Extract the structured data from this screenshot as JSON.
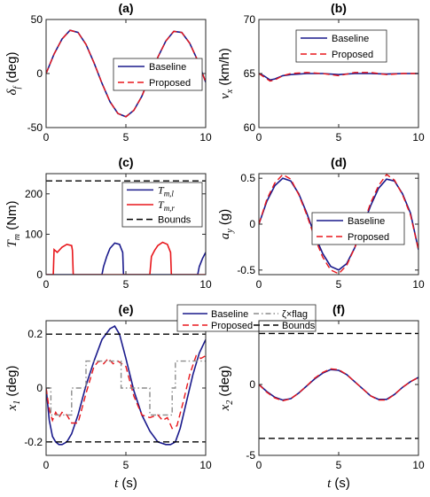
{
  "colors": {
    "baseline": "#1a1a8c",
    "proposed": "#e8161b",
    "bounds": "#000000",
    "flag": "#8c8c8c"
  },
  "chart_data": [
    {
      "id": "a",
      "type": "line",
      "title": "(a)",
      "ylabel": "δ_f (deg)",
      "xlabel": "",
      "xlim": [
        0,
        10
      ],
      "ylim": [
        -50,
        50
      ],
      "xticks": [
        0,
        5,
        10
      ],
      "yticks": [
        -50,
        0,
        50
      ],
      "xticklabels": [
        "0",
        "5",
        "10"
      ],
      "yticklabels": [
        "-50",
        "0",
        "50"
      ],
      "grid": false,
      "legend": "center-right",
      "series": [
        {
          "name": "Baseline",
          "style": "solid",
          "color": "#1a1a8c",
          "x": [
            0,
            0.5,
            1,
            1.5,
            2,
            2.5,
            3,
            3.5,
            4,
            4.5,
            5,
            5.5,
            6,
            6.5,
            7,
            7.5,
            8,
            8.5,
            9,
            9.5,
            10
          ],
          "y": [
            0,
            18,
            32,
            40,
            38,
            27,
            10,
            -9,
            -26,
            -37,
            -40,
            -34,
            -21,
            -3,
            15,
            30,
            39,
            38,
            28,
            12,
            -8
          ]
        },
        {
          "name": "Proposed",
          "style": "dashed",
          "color": "#e8161b",
          "x": [
            0,
            0.5,
            1,
            1.5,
            2,
            2.5,
            3,
            3.5,
            4,
            4.5,
            5,
            5.5,
            6,
            6.5,
            7,
            7.5,
            8,
            8.5,
            9,
            9.5,
            10
          ],
          "y": [
            0,
            18,
            32,
            40,
            38,
            27,
            10,
            -9,
            -26,
            -37,
            -40,
            -34,
            -21,
            -3,
            15,
            30,
            39,
            38,
            28,
            12,
            -8
          ]
        }
      ]
    },
    {
      "id": "b",
      "type": "line",
      "title": "(b)",
      "ylabel": "v_x (km/h)",
      "xlabel": "",
      "xlim": [
        0,
        10
      ],
      "ylim": [
        60,
        70
      ],
      "xticks": [
        0,
        5,
        10
      ],
      "yticks": [
        60,
        65,
        70
      ],
      "xticklabels": [
        "0",
        "5",
        "10"
      ],
      "yticklabels": [
        "60",
        "65",
        "70"
      ],
      "grid": false,
      "legend": "top-right",
      "series": [
        {
          "name": "Baseline",
          "style": "solid",
          "color": "#1a1a8c",
          "x": [
            0,
            0.3,
            0.7,
            1,
            1.5,
            2,
            3,
            4,
            5,
            6,
            7,
            8,
            9,
            10
          ],
          "y": [
            65,
            64.8,
            64.4,
            64.5,
            64.8,
            64.9,
            65,
            65,
            64.9,
            65,
            65,
            64.95,
            65,
            65
          ]
        },
        {
          "name": "Proposed",
          "style": "dashed",
          "color": "#e8161b",
          "x": [
            0,
            0.3,
            0.7,
            1,
            1.5,
            2,
            3,
            4,
            5,
            6,
            7,
            8,
            9,
            10
          ],
          "y": [
            65,
            64.7,
            64.3,
            64.4,
            64.8,
            65,
            65.1,
            65,
            64.8,
            65.1,
            65.1,
            64.9,
            65,
            65
          ]
        }
      ]
    },
    {
      "id": "c",
      "type": "line",
      "title": "(c)",
      "ylabel": "T_m (Nm)",
      "xlabel": "",
      "xlim": [
        0,
        10
      ],
      "ylim": [
        0,
        250
      ],
      "xticks": [
        0,
        5,
        10
      ],
      "yticks": [
        0,
        100,
        200
      ],
      "xticklabels": [
        "0",
        "5",
        "10"
      ],
      "yticklabels": [
        "0",
        "100",
        "200"
      ],
      "grid": false,
      "legend": "top-right",
      "series": [
        {
          "name": "T_m,l",
          "style": "solid",
          "color": "#1a1a8c",
          "x": [
            0,
            3.5,
            3.6,
            3.8,
            4,
            4.3,
            4.6,
            4.8,
            4.85,
            9.5,
            9.6,
            9.8,
            10
          ],
          "y": [
            0,
            0,
            20,
            45,
            65,
            78,
            75,
            55,
            0,
            0,
            20,
            40,
            55
          ]
        },
        {
          "name": "T_m,r",
          "style": "solid",
          "color": "#e8161b",
          "x": [
            0,
            0.45,
            0.5,
            0.7,
            1,
            1.3,
            1.6,
            1.65,
            1.7,
            6.5,
            6.6,
            6.8,
            7,
            7.3,
            7.6,
            7.8,
            7.85,
            10
          ],
          "y": [
            0,
            0,
            62,
            55,
            68,
            75,
            72,
            60,
            0,
            0,
            45,
            60,
            72,
            80,
            75,
            55,
            0,
            0
          ]
        },
        {
          "name": "Bounds",
          "style": "dashed",
          "color": "#000000",
          "x": [
            0,
            10
          ],
          "y": [
            232,
            232
          ]
        }
      ]
    },
    {
      "id": "d",
      "type": "line",
      "title": "(d)",
      "ylabel": "a_y (g)",
      "xlabel": "",
      "xlim": [
        0,
        10
      ],
      "ylim": [
        -0.55,
        0.55
      ],
      "xticks": [
        0,
        5,
        10
      ],
      "yticks": [
        -0.5,
        0,
        0.5
      ],
      "xticklabels": [
        "0",
        "5",
        "10"
      ],
      "yticklabels": [
        "-0.5",
        "0",
        "0.5"
      ],
      "grid": false,
      "legend": "center-right",
      "series": [
        {
          "name": "Baseline",
          "style": "solid",
          "color": "#1a1a8c",
          "x": [
            0,
            0.5,
            1,
            1.5,
            2,
            2.5,
            3,
            3.5,
            4,
            4.5,
            5,
            5.5,
            6,
            6.5,
            7,
            7.5,
            8,
            8.5,
            9,
            9.5,
            10
          ],
          "y": [
            0,
            0.25,
            0.42,
            0.5,
            0.47,
            0.33,
            0.12,
            -0.12,
            -0.32,
            -0.46,
            -0.5,
            -0.43,
            -0.26,
            -0.03,
            0.2,
            0.39,
            0.49,
            0.47,
            0.33,
            0.12,
            -0.28
          ]
        },
        {
          "name": "Proposed",
          "style": "dashed",
          "color": "#e8161b",
          "x": [
            0,
            0.5,
            1,
            1.5,
            2,
            2.5,
            3,
            3.5,
            4,
            4.5,
            5,
            5.5,
            6,
            6.5,
            7,
            7.5,
            8,
            8.5,
            9,
            9.5,
            10
          ],
          "y": [
            0,
            0.27,
            0.45,
            0.54,
            0.49,
            0.32,
            0.1,
            -0.15,
            -0.36,
            -0.5,
            -0.54,
            -0.45,
            -0.26,
            -0.02,
            0.23,
            0.42,
            0.54,
            0.48,
            0.32,
            0.1,
            -0.28
          ]
        }
      ]
    },
    {
      "id": "e",
      "type": "line",
      "title": "(e)",
      "ylabel": "x_1 (deg)",
      "xlabel": "t (s)",
      "xlim": [
        0,
        10
      ],
      "ylim": [
        -0.25,
        0.25
      ],
      "xticks": [
        0,
        5,
        10
      ],
      "yticks": [
        -0.2,
        0,
        0.2
      ],
      "xticklabels": [
        "0",
        "5",
        "10"
      ],
      "yticklabels": [
        "-0.2",
        "0",
        "0.2"
      ],
      "grid": false,
      "legend": "top (outside)",
      "series": [
        {
          "name": "Baseline",
          "style": "solid",
          "color": "#1a1a8c",
          "x": [
            0,
            0.2,
            0.4,
            0.6,
            0.8,
            1,
            1.3,
            1.6,
            2,
            2.5,
            3,
            3.5,
            4,
            4.3,
            4.6,
            5,
            5.5,
            6,
            6.5,
            7,
            7.5,
            7.8,
            8.1,
            8.4,
            8.8,
            9.2,
            9.6,
            10
          ],
          "y": [
            0,
            -0.12,
            -0.18,
            -0.2,
            -0.21,
            -0.21,
            -0.2,
            -0.17,
            -0.1,
            0.01,
            0.1,
            0.18,
            0.22,
            0.23,
            0.2,
            0.11,
            -0.01,
            -0.1,
            -0.16,
            -0.2,
            -0.21,
            -0.21,
            -0.2,
            -0.15,
            -0.05,
            0.05,
            0.13,
            0.18
          ]
        },
        {
          "name": "Proposed",
          "style": "dashed",
          "color": "#e8161b",
          "x": [
            0,
            0.2,
            0.4,
            0.6,
            0.8,
            1,
            1.3,
            1.6,
            2,
            2.5,
            3,
            3.3,
            3.6,
            3.9,
            4.2,
            4.5,
            5,
            5.5,
            6,
            6.5,
            7,
            7.3,
            7.6,
            7.9,
            8.2,
            8.6,
            9,
            9.4,
            9.7,
            10
          ],
          "y": [
            0,
            -0.08,
            -0.12,
            -0.09,
            -0.11,
            -0.09,
            -0.1,
            -0.13,
            -0.13,
            -0.02,
            0.08,
            0.1,
            0.09,
            0.11,
            0.09,
            0.1,
            0.08,
            -0.03,
            -0.1,
            -0.11,
            -0.1,
            -0.12,
            -0.11,
            -0.15,
            -0.14,
            -0.05,
            0.05,
            0.12,
            0.11,
            0.12
          ]
        },
        {
          "name": "ζ×flag",
          "style": "dashdot",
          "color": "#8c8c8c",
          "x": [
            0,
            0.3,
            0.3,
            1.6,
            1.6,
            2.5,
            2.5,
            4.7,
            4.7,
            6.5,
            6.5,
            7.9,
            7.9,
            8.1,
            8.1,
            10
          ],
          "y": [
            0,
            0,
            -0.1,
            -0.1,
            0,
            0,
            0.1,
            0.1,
            0,
            0,
            -0.1,
            -0.1,
            0,
            0,
            0.1,
            0.1
          ]
        },
        {
          "name": "Bounds",
          "style": "dashed",
          "color": "#000000",
          "x": [
            0,
            10
          ],
          "y": [
            0.2,
            0.2
          ]
        },
        {
          "name": "",
          "style": "dashed",
          "color": "#000000",
          "x": [
            0,
            10
          ],
          "y": [
            -0.2,
            -0.2
          ]
        }
      ]
    },
    {
      "id": "f",
      "type": "line",
      "title": "(f)",
      "ylabel": "x_2 (deg)",
      "xlabel": "t (s)",
      "xlim": [
        0,
        10
      ],
      "ylim": [
        -5,
        4.5
      ],
      "xticks": [
        0,
        5,
        10
      ],
      "yticks": [
        -5,
        0
      ],
      "xticklabels": [
        "0",
        "5",
        "10"
      ],
      "yticklabels": [
        "-5",
        "0"
      ],
      "grid": false,
      "legend": "none",
      "series": [
        {
          "name": "Baseline",
          "style": "solid",
          "color": "#1a1a8c",
          "x": [
            0,
            0.5,
            1,
            1.5,
            2,
            2.5,
            3,
            3.5,
            4,
            4.5,
            5,
            5.5,
            6,
            6.5,
            7,
            7.5,
            8,
            8.5,
            9,
            9.5,
            10
          ],
          "y": [
            0,
            -0.5,
            -0.9,
            -1.1,
            -1,
            -0.6,
            -0.1,
            0.4,
            0.8,
            1.05,
            1,
            0.7,
            0.2,
            -0.3,
            -0.8,
            -1.05,
            -1.05,
            -0.7,
            -0.2,
            0.2,
            0.5
          ]
        },
        {
          "name": "Proposed",
          "style": "dashed",
          "color": "#e8161b",
          "x": [
            0,
            0.5,
            1,
            1.5,
            2,
            2.5,
            3,
            3.5,
            4,
            4.5,
            5,
            5.5,
            6,
            6.5,
            7,
            7.5,
            8,
            8.5,
            9,
            9.5,
            10
          ],
          "y": [
            0,
            -0.55,
            -0.95,
            -1.15,
            -1,
            -0.6,
            -0.1,
            0.45,
            0.85,
            1.1,
            1.05,
            0.7,
            0.2,
            -0.3,
            -0.8,
            -1.1,
            -1.1,
            -0.7,
            -0.2,
            0.2,
            0.5
          ]
        },
        {
          "name": "Bounds",
          "style": "dashed",
          "color": "#000000",
          "x": [
            0,
            10
          ],
          "y": [
            3.6,
            3.6
          ]
        },
        {
          "name": "",
          "style": "dashed",
          "color": "#000000",
          "x": [
            0,
            10
          ],
          "y": [
            -3.8,
            -3.8
          ]
        }
      ]
    }
  ],
  "legends": {
    "a": [
      "Baseline",
      "Proposed"
    ],
    "b": [
      "Baseline",
      "Proposed"
    ],
    "c": [
      "T_m,l",
      "T_m,r",
      "Bounds"
    ],
    "d": [
      "Baseline",
      "Proposed"
    ],
    "e": [
      "Baseline",
      "ζ×flag",
      "Proposed",
      "Bounds"
    ]
  }
}
